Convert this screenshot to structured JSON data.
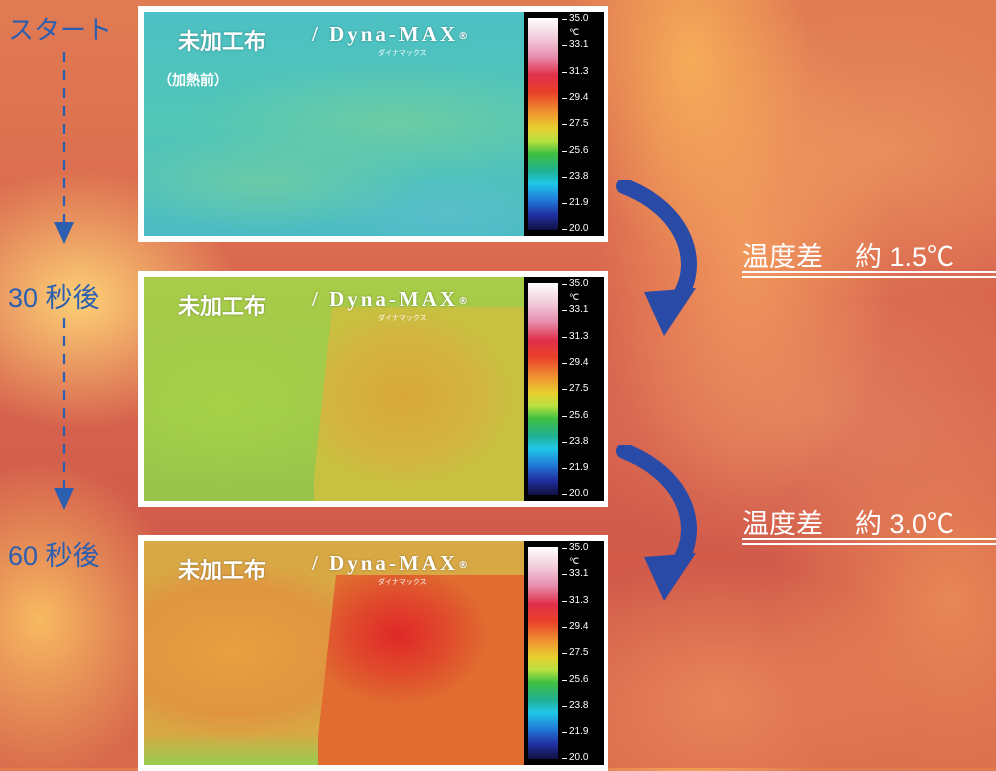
{
  "timeline": {
    "start": "スタート",
    "step_30": "30 秒後",
    "step_60": "60 秒後"
  },
  "panels": [
    {
      "label": "未加工布",
      "brand": "/ Dyna-MAX",
      "brand_mark": "®",
      "brand_sub": "ダイナマックス",
      "sublabel": "（加熱前）"
    },
    {
      "label": "未加工布",
      "brand": "/ Dyna-MAX",
      "brand_mark": "®",
      "brand_sub": "ダイナマックス"
    },
    {
      "label": "未加工布",
      "brand": "/ Dyna-MAX",
      "brand_mark": "®",
      "brand_sub": "ダイナマックス"
    }
  ],
  "scale": {
    "unit": "℃",
    "ticks": [
      "35.0",
      "33.1",
      "31.3",
      "29.4",
      "27.5",
      "25.6",
      "23.8",
      "21.9",
      "20.0"
    ]
  },
  "differences": [
    {
      "label": "温度差",
      "value": "約 1.5℃"
    },
    {
      "label": "温度差",
      "value": "約 3.0℃"
    }
  ],
  "colors": {
    "timeline": "#2c5fb0",
    "arrow": "#2a4aa8",
    "panel_1_fabric": "#4fc4b8",
    "panel_2_fabric": "#a8d048",
    "panel_2_patch": "#d8b038",
    "panel_3_fabric": "#e09040",
    "panel_3_patch": "#e04a2c"
  }
}
